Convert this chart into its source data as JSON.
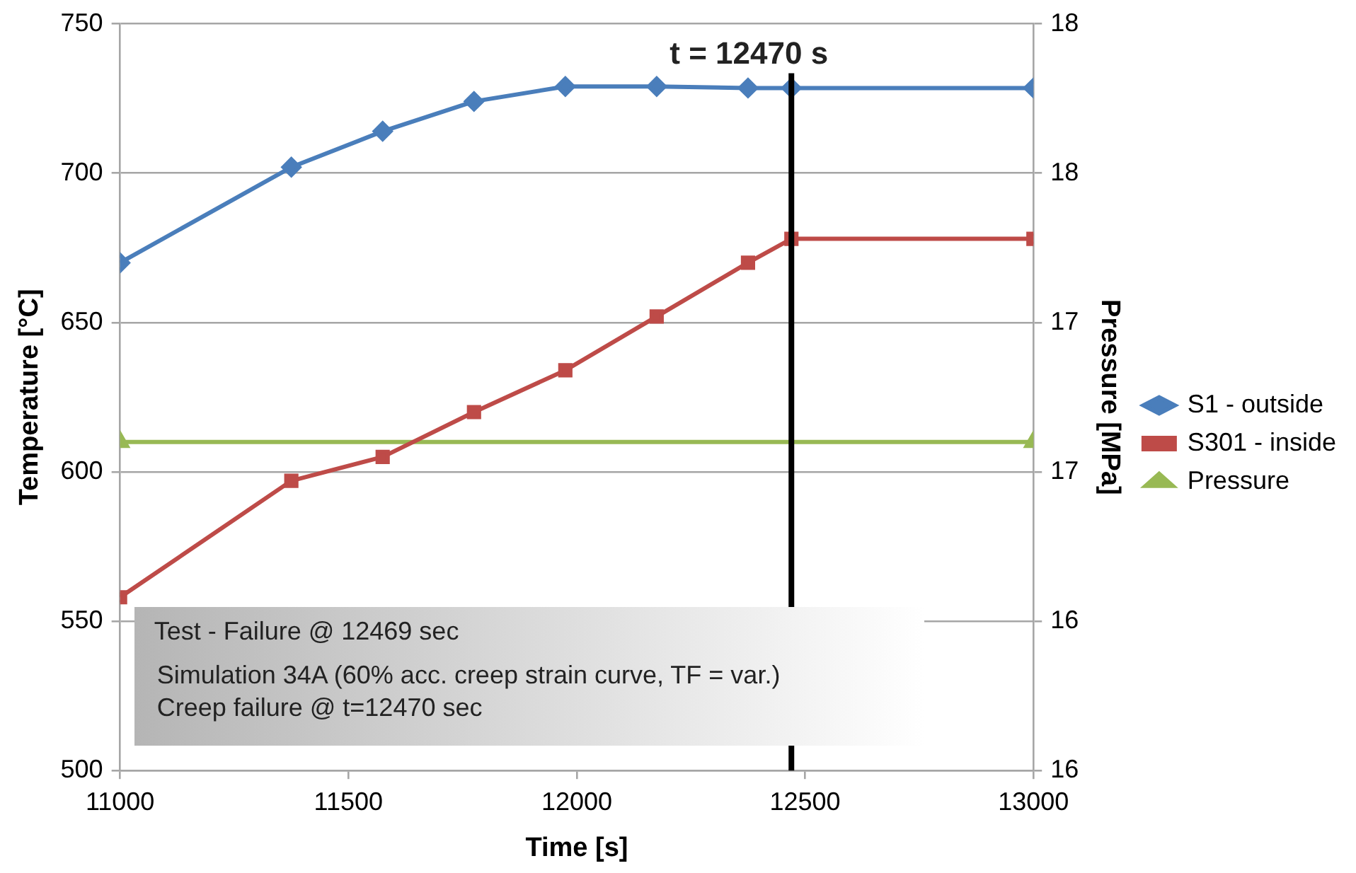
{
  "chart_data": {
    "type": "line",
    "xlabel": "Time [s]",
    "ylabel": "Temperature [°C]",
    "y2label": "Pressure [MPa]",
    "xlim": [
      11000,
      13000
    ],
    "xticks": [
      11000,
      11500,
      12000,
      12500,
      13000
    ],
    "ylim": [
      500,
      750
    ],
    "yticks": [
      500,
      550,
      600,
      650,
      700,
      750
    ],
    "y2lim": [
      16,
      18
    ],
    "y2ticks": [
      {
        "value": 16,
        "label": "16"
      },
      {
        "value": 16.4,
        "label": "16"
      },
      {
        "value": 16.8,
        "label": "17"
      },
      {
        "value": 17.2,
        "label": "17"
      },
      {
        "value": 17.6,
        "label": "18"
      },
      {
        "value": 18,
        "label": "18"
      }
    ],
    "grid": "y",
    "legend": "right",
    "line_style": "solid",
    "series": [
      {
        "name": "S1 - outside",
        "color": "#4a7ebb",
        "marker": "diamond",
        "x": [
          11000,
          11375,
          11575,
          11775,
          11975,
          12175,
          12375,
          12470,
          13000
        ],
        "values": [
          670,
          702,
          714,
          724,
          729,
          729,
          728.5,
          728.5,
          728.5
        ]
      },
      {
        "name": "S301 - inside",
        "color": "#be4b48",
        "marker": "square",
        "x": [
          11000,
          11375,
          11575,
          11775,
          11975,
          12175,
          12375,
          12470,
          13000
        ],
        "values": [
          558,
          597,
          605,
          620,
          634,
          652,
          670,
          678,
          678
        ]
      },
      {
        "name": "Pressure",
        "color": "#98b954",
        "marker": "triangle",
        "axis": "y2",
        "x": [
          11000,
          13000
        ],
        "values": [
          16.88,
          16.88
        ]
      }
    ],
    "ref_lines": [
      {
        "axis": "x",
        "value": 12470,
        "label": "t = 12470 s",
        "color": "#000000"
      }
    ],
    "annotations": [
      "Test - Failure @ 12469 sec",
      "Simulation 34A (60% acc. creep strain curve, TF = var.)",
      "Creep failure @ t=12470 sec"
    ]
  }
}
